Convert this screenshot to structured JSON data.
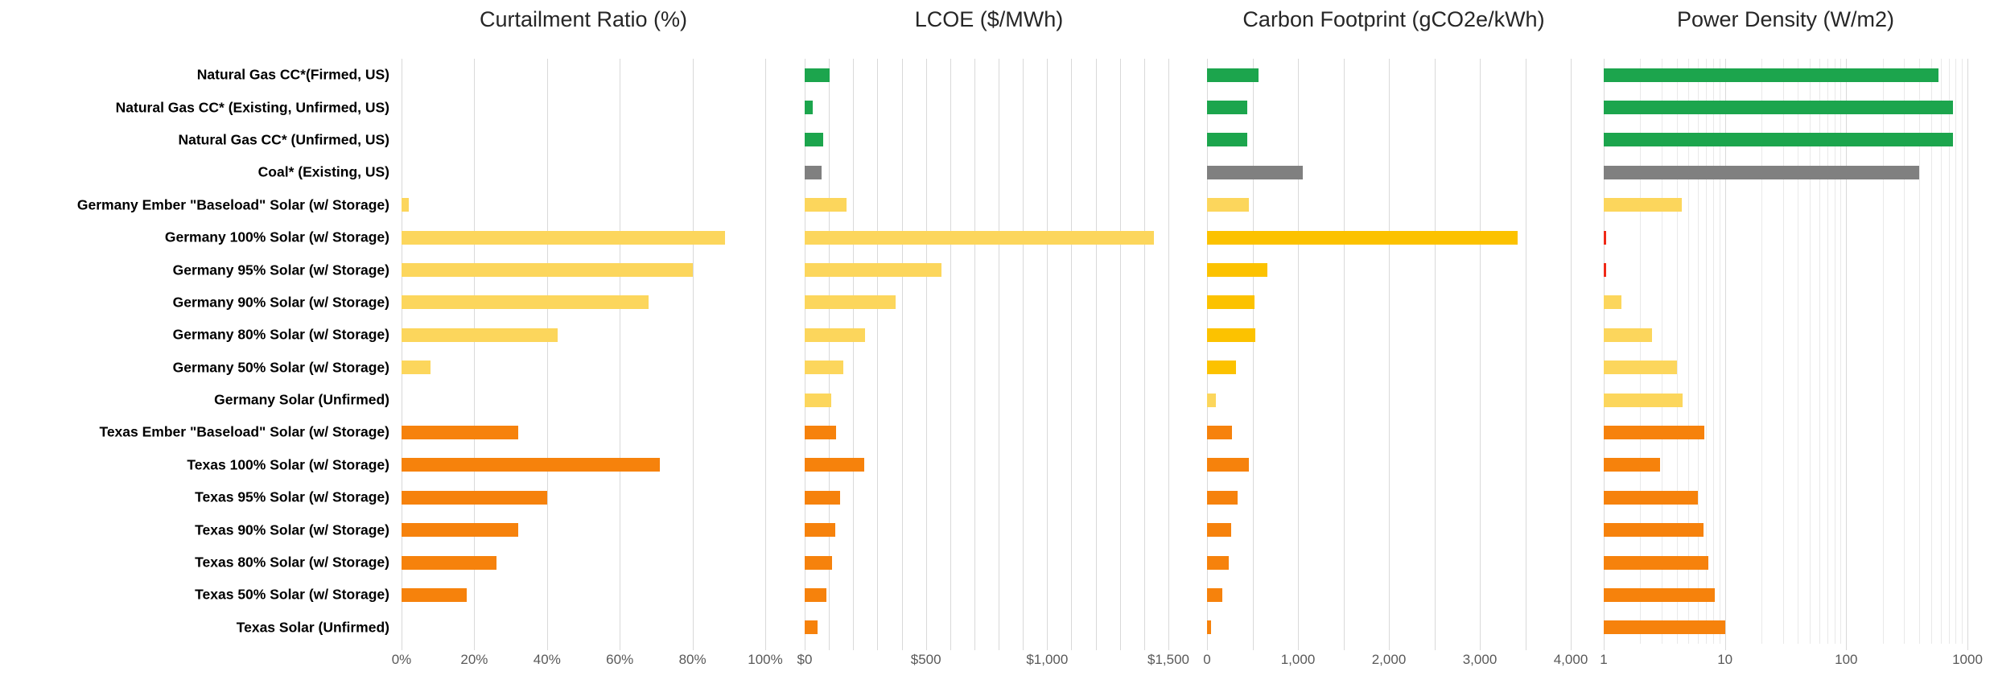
{
  "chart_data": {
    "type": "bar",
    "orientation": "horizontal",
    "grid": "vertical-gridlines-on",
    "panels": [
      {
        "id": "curtailment",
        "title": "Curtailment Ratio (%)",
        "scale": "linear",
        "axis_min": 0,
        "axis_max": 100,
        "gridline_step": 20,
        "label_every_nth_gridline": 1,
        "tick_labels": [
          "0%",
          "20%",
          "40%",
          "60%",
          "80%",
          "100%"
        ]
      },
      {
        "id": "lcoe",
        "title": "LCOE ($/MWh)",
        "scale": "linear",
        "axis_min": 0,
        "axis_max": 1500,
        "gridline_step": 100,
        "label_every_nth_gridline": 5,
        "tick_labels": [
          "$0",
          "$500",
          "$1,000",
          "$1,500"
        ]
      },
      {
        "id": "carbon",
        "title": "Carbon Footprint (gCO2e/kWh)",
        "scale": "linear",
        "axis_min": 0,
        "axis_max": 4000,
        "gridline_step": 500,
        "label_every_nth_gridline": 2,
        "tick_labels": [
          "0",
          "1,000",
          "2,000",
          "3,000",
          "4,000"
        ]
      },
      {
        "id": "power-density",
        "title": "Power Density (W/m2)",
        "scale": "log10",
        "axis_min": 1,
        "axis_max": 1000,
        "decades": 3,
        "label_every_nth_gridline": 1,
        "tick_labels": [
          "1",
          "10",
          "100",
          "1000"
        ]
      }
    ],
    "colors": {
      "gas": "#1CA54D",
      "coal": "#808080",
      "germany": "#FCD65C",
      "germany_gold": "#FCC200",
      "texas": "#F6820C",
      "red": "#EF2917",
      "gridline": "#D9D9D9",
      "axis_text": "#595959",
      "title_text": "#262626"
    },
    "value_order": [
      "curtailment_pct",
      "lcoe_usd_per_mwh",
      "carbon_gco2e_per_kwh",
      "power_density_w_per_m2"
    ],
    "rows": [
      {
        "label": "Natural Gas CC*(Firmed, US)",
        "group": "gas",
        "values": [
          0,
          103,
          570,
          580
        ],
        "panel_colors": [
          "gas",
          "gas",
          "gas",
          "gas"
        ]
      },
      {
        "label": "Natural Gas CC* (Existing, Unfirmed, US)",
        "group": "gas",
        "values": [
          0,
          33,
          440,
          755
        ],
        "panel_colors": [
          "gas",
          "gas",
          "gas",
          "gas"
        ]
      },
      {
        "label": "Natural Gas CC* (Unfirmed, US)",
        "group": "gas",
        "values": [
          0,
          77,
          440,
          760
        ],
        "panel_colors": [
          "gas",
          "gas",
          "gas",
          "gas"
        ]
      },
      {
        "label": "Coal* (Existing, US)",
        "group": "coal",
        "values": [
          0,
          71,
          1050,
          400
        ],
        "panel_colors": [
          "coal",
          "coal",
          "coal",
          "coal"
        ]
      },
      {
        "label": "Germany Ember \"Baseload\" Solar (w/ Storage)",
        "group": "germany",
        "values": [
          2,
          174,
          460,
          4.4
        ],
        "panel_colors": [
          "germany",
          "germany",
          "germany",
          "germany"
        ]
      },
      {
        "label": "Germany 100% Solar (w/ Storage)",
        "group": "germany",
        "values": [
          89,
          1440,
          3420,
          1
        ],
        "panel_colors": [
          "germany",
          "germany",
          "germany_gold",
          "red"
        ],
        "power_marker": "red-tick"
      },
      {
        "label": "Germany 95% Solar (w/ Storage)",
        "group": "germany",
        "values": [
          80,
          565,
          660,
          1
        ],
        "panel_colors": [
          "germany",
          "germany",
          "germany_gold",
          "red"
        ],
        "power_marker": "red-tick"
      },
      {
        "label": "Germany 90% Solar (w/ Storage)",
        "group": "germany",
        "values": [
          68,
          375,
          520,
          1.4
        ],
        "panel_colors": [
          "germany",
          "germany",
          "germany_gold",
          "germany"
        ]
      },
      {
        "label": "Germany 80% Solar (w/ Storage)",
        "group": "germany",
        "values": [
          43,
          250,
          530,
          2.5
        ],
        "panel_colors": [
          "germany",
          "germany",
          "germany_gold",
          "germany"
        ]
      },
      {
        "label": "Germany 50% Solar (w/ Storage)",
        "group": "germany",
        "values": [
          8,
          160,
          320,
          4
        ],
        "panel_colors": [
          "germany",
          "germany",
          "germany_gold",
          "germany"
        ]
      },
      {
        "label": "Germany Solar (Unfirmed)",
        "group": "germany",
        "values": [
          0,
          110,
          100,
          4.5
        ],
        "panel_colors": [
          "germany",
          "germany",
          "germany",
          "germany"
        ]
      },
      {
        "label": "Texas Ember \"Baseload\" Solar (w/ Storage)",
        "group": "texas",
        "values": [
          32,
          128,
          270,
          6.8
        ],
        "panel_colors": [
          "texas",
          "texas",
          "texas",
          "texas"
        ]
      },
      {
        "label": "Texas 100% Solar (w/ Storage)",
        "group": "texas",
        "values": [
          71,
          245,
          460,
          2.9
        ],
        "panel_colors": [
          "texas",
          "texas",
          "texas",
          "texas"
        ]
      },
      {
        "label": "Texas 95% Solar (w/ Storage)",
        "group": "texas",
        "values": [
          40,
          147,
          335,
          6
        ],
        "panel_colors": [
          "texas",
          "texas",
          "texas",
          "texas"
        ]
      },
      {
        "label": "Texas 90% Solar (w/ Storage)",
        "group": "texas",
        "values": [
          32,
          125,
          265,
          6.7
        ],
        "panel_colors": [
          "texas",
          "texas",
          "texas",
          "texas"
        ]
      },
      {
        "label": "Texas 80% Solar (w/ Storage)",
        "group": "texas",
        "values": [
          26,
          114,
          240,
          7.3
        ],
        "panel_colors": [
          "texas",
          "texas",
          "texas",
          "texas"
        ]
      },
      {
        "label": "Texas 50% Solar (w/ Storage)",
        "group": "texas",
        "values": [
          18,
          90,
          170,
          8.2
        ],
        "panel_colors": [
          "texas",
          "texas",
          "texas",
          "texas"
        ]
      },
      {
        "label": "Texas Solar (Unfirmed)",
        "group": "texas",
        "values": [
          0,
          54,
          40,
          10
        ],
        "panel_colors": [
          "texas",
          "texas",
          "texas",
          "texas"
        ]
      }
    ]
  }
}
